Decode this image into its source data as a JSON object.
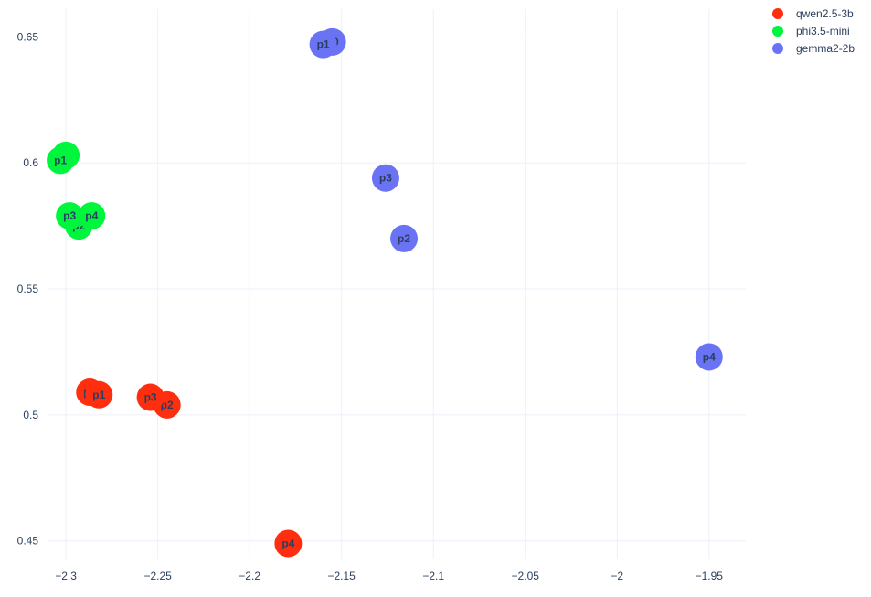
{
  "chart_data": {
    "type": "scatter",
    "xlim": [
      -2.31,
      -1.93
    ],
    "ylim": [
      0.443,
      0.661
    ],
    "x_ticks": [
      -2.3,
      -2.25,
      -2.2,
      -2.15,
      -2.1,
      -2.05,
      -2,
      -1.95
    ],
    "x_tick_labels": [
      "−2.3",
      "−2.25",
      "−2.2",
      "−2.15",
      "−2.1",
      "−2.05",
      "−2",
      "−1.95"
    ],
    "y_ticks": [
      0.45,
      0.5,
      0.55,
      0.6,
      0.65
    ],
    "y_tick_labels": [
      "0.45",
      "0.5",
      "0.55",
      "0.6",
      "0.65"
    ],
    "grid": true,
    "legend_position": "top-right",
    "series": [
      {
        "name": "qwen2.5-3b",
        "color": "#ff2e0f",
        "points": [
          {
            "label": "p0",
            "x": -2.287,
            "y": 0.509
          },
          {
            "label": "p1",
            "x": -2.282,
            "y": 0.508
          },
          {
            "label": "p2",
            "x": -2.245,
            "y": 0.504
          },
          {
            "label": "p3",
            "x": -2.254,
            "y": 0.507
          },
          {
            "label": "p4",
            "x": -2.179,
            "y": 0.449
          }
        ]
      },
      {
        "name": "phi3.5-mini",
        "color": "#00f53d",
        "points": [
          {
            "label": "p0",
            "x": -2.3,
            "y": 0.603
          },
          {
            "label": "p1",
            "x": -2.303,
            "y": 0.601
          },
          {
            "label": "p2",
            "x": -2.293,
            "y": 0.575
          },
          {
            "label": "p3",
            "x": -2.298,
            "y": 0.579
          },
          {
            "label": "p4",
            "x": -2.286,
            "y": 0.579
          }
        ]
      },
      {
        "name": "gemma2-2b",
        "color": "#6b73f5",
        "points": [
          {
            "label": "p0",
            "x": -2.155,
            "y": 0.648
          },
          {
            "label": "p1",
            "x": -2.16,
            "y": 0.647
          },
          {
            "label": "p2",
            "x": -2.116,
            "y": 0.57
          },
          {
            "label": "p3",
            "x": -2.126,
            "y": 0.594
          },
          {
            "label": "p4",
            "x": -1.95,
            "y": 0.523
          }
        ]
      }
    ]
  }
}
